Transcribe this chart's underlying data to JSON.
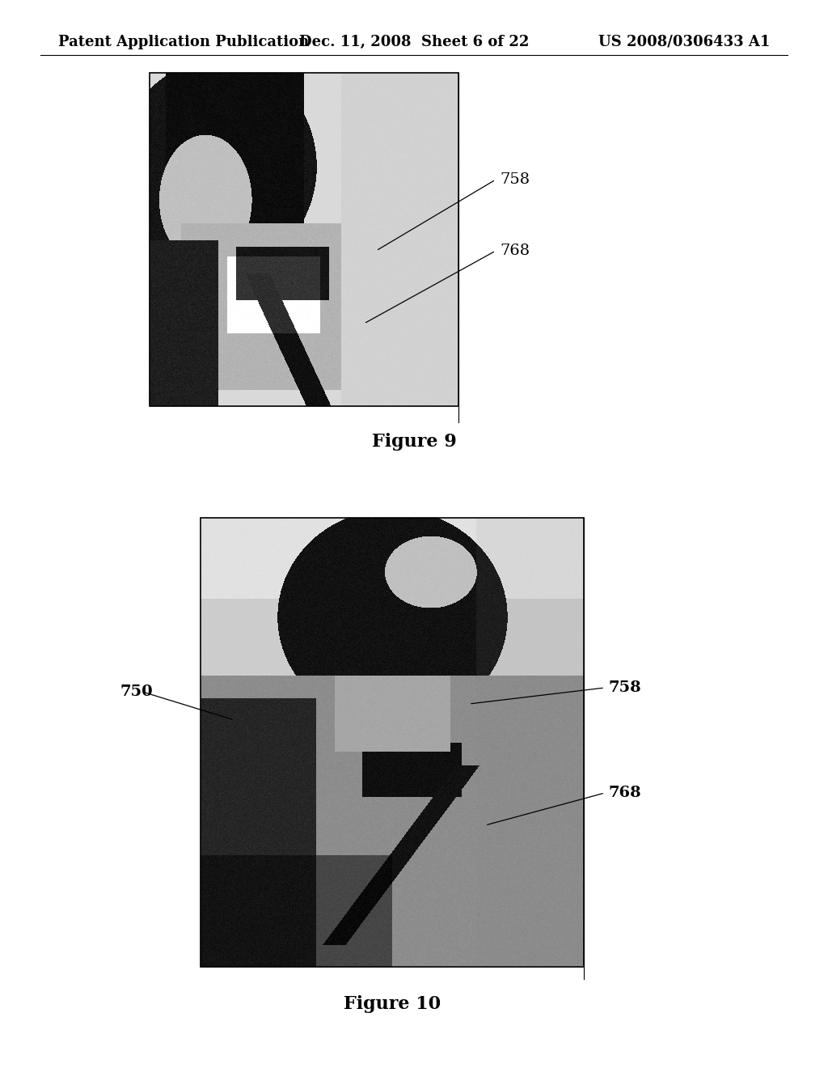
{
  "bg_color": "#ffffff",
  "header_left": "Patent Application Publication",
  "header_center": "Dec. 11, 2008  Sheet 6 of 22",
  "header_right": "US 2008/0306433 A1",
  "header_fontsize": 13,
  "fig1_caption": "Figure 9",
  "fig1_label_758": "758",
  "fig1_label_768": "768",
  "fig2_caption": "Figure 10",
  "fig2_label_750": "750",
  "fig2_label_758": "758",
  "fig2_label_768": "768",
  "text_color": "#000000",
  "label_fontsize": 14,
  "caption_fontsize": 16
}
